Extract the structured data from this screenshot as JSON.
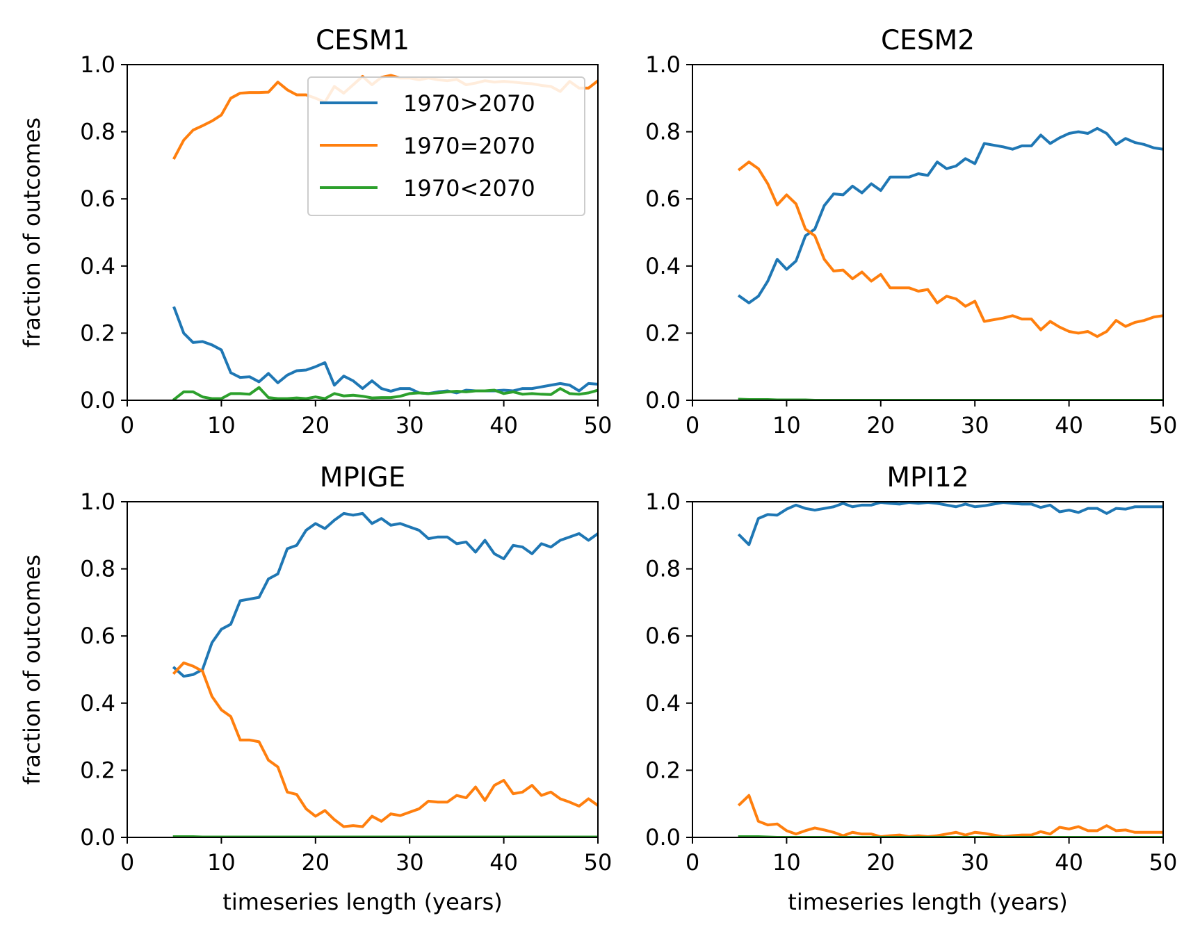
{
  "figure": {
    "series_styles": [
      {
        "key": "gt",
        "label": "1970>2070",
        "color": "#1f77b4"
      },
      {
        "key": "eq",
        "label": "1970=2070",
        "color": "#ff7f0e"
      },
      {
        "key": "lt",
        "label": "1970<2070",
        "color": "#2ca02c"
      }
    ]
  },
  "chart_data": [
    {
      "type": "line",
      "title": "CESM1",
      "xlabel": "",
      "ylabel": "fraction of outcomes",
      "xlim": [
        0,
        50
      ],
      "ylim": [
        0,
        1
      ],
      "xticks": [
        0,
        10,
        20,
        30,
        40,
        50
      ],
      "yticks": [
        0.0,
        0.2,
        0.4,
        0.6,
        0.8,
        1.0
      ],
      "grid": false,
      "legend": "upper-right",
      "x": [
        5,
        6,
        7,
        8,
        9,
        10,
        11,
        12,
        13,
        14,
        15,
        16,
        17,
        18,
        19,
        20,
        21,
        22,
        23,
        24,
        25,
        26,
        27,
        28,
        29,
        30,
        31,
        32,
        33,
        34,
        35,
        36,
        37,
        38,
        39,
        40,
        41,
        42,
        43,
        44,
        45,
        46,
        47,
        48,
        49,
        50
      ],
      "series": [
        {
          "name": "1970>2070",
          "color": "#1f77b4",
          "values": [
            0.275,
            0.2,
            0.172,
            0.175,
            0.165,
            0.15,
            0.082,
            0.068,
            0.07,
            0.055,
            0.08,
            0.052,
            0.075,
            0.088,
            0.09,
            0.1,
            0.112,
            0.045,
            0.072,
            0.058,
            0.035,
            0.058,
            0.035,
            0.027,
            0.035,
            0.035,
            0.022,
            0.02,
            0.025,
            0.028,
            0.022,
            0.03,
            0.028,
            0.028,
            0.028,
            0.03,
            0.028,
            0.035,
            0.035,
            0.04,
            0.045,
            0.05,
            0.045,
            0.028,
            0.05,
            0.048
          ]
        },
        {
          "name": "1970=2070",
          "color": "#ff7f0e",
          "values": [
            0.722,
            0.775,
            0.805,
            0.818,
            0.832,
            0.85,
            0.9,
            0.915,
            0.917,
            0.917,
            0.918,
            0.948,
            0.925,
            0.91,
            0.91,
            0.9,
            0.888,
            0.935,
            0.915,
            0.94,
            0.965,
            0.94,
            0.962,
            0.968,
            0.96,
            0.96,
            0.955,
            0.96,
            0.955,
            0.952,
            0.956,
            0.94,
            0.945,
            0.952,
            0.948,
            0.95,
            0.948,
            0.945,
            0.943,
            0.938,
            0.935,
            0.92,
            0.95,
            0.93,
            0.93,
            0.952
          ]
        },
        {
          "name": "1970<2070",
          "color": "#2ca02c",
          "values": [
            0.003,
            0.025,
            0.025,
            0.01,
            0.005,
            0.005,
            0.02,
            0.02,
            0.018,
            0.038,
            0.008,
            0.005,
            0.005,
            0.007,
            0.005,
            0.01,
            0.005,
            0.02,
            0.013,
            0.015,
            0.012,
            0.007,
            0.008,
            0.008,
            0.012,
            0.02,
            0.022,
            0.02,
            0.022,
            0.025,
            0.027,
            0.025,
            0.028,
            0.028,
            0.03,
            0.02,
            0.025,
            0.018,
            0.02,
            0.018,
            0.017,
            0.035,
            0.02,
            0.018,
            0.022,
            0.03
          ]
        }
      ]
    },
    {
      "type": "line",
      "title": "CESM2",
      "xlabel": "",
      "ylabel": "",
      "xlim": [
        0,
        50
      ],
      "ylim": [
        0,
        1
      ],
      "xticks": [
        0,
        10,
        20,
        30,
        40,
        50
      ],
      "yticks": [
        0.0,
        0.2,
        0.4,
        0.6,
        0.8,
        1.0
      ],
      "grid": false,
      "legend": "none",
      "x": [
        5,
        6,
        7,
        8,
        9,
        10,
        11,
        12,
        13,
        14,
        15,
        16,
        17,
        18,
        19,
        20,
        21,
        22,
        23,
        24,
        25,
        26,
        27,
        28,
        29,
        30,
        31,
        32,
        33,
        34,
        35,
        36,
        37,
        38,
        39,
        40,
        41,
        42,
        43,
        44,
        45,
        46,
        47,
        48,
        49,
        50
      ],
      "series": [
        {
          "name": "1970>2070",
          "color": "#1f77b4",
          "values": [
            0.31,
            0.29,
            0.31,
            0.355,
            0.42,
            0.39,
            0.415,
            0.49,
            0.51,
            0.58,
            0.615,
            0.612,
            0.638,
            0.618,
            0.645,
            0.625,
            0.665,
            0.665,
            0.665,
            0.675,
            0.67,
            0.71,
            0.69,
            0.698,
            0.72,
            0.705,
            0.765,
            0.76,
            0.755,
            0.748,
            0.758,
            0.758,
            0.79,
            0.765,
            0.782,
            0.795,
            0.8,
            0.795,
            0.81,
            0.795,
            0.762,
            0.78,
            0.768,
            0.762,
            0.752,
            0.748
          ]
        },
        {
          "name": "1970=2070",
          "color": "#ff7f0e",
          "values": [
            0.688,
            0.71,
            0.69,
            0.645,
            0.582,
            0.612,
            0.585,
            0.51,
            0.49,
            0.42,
            0.385,
            0.388,
            0.362,
            0.382,
            0.355,
            0.375,
            0.335,
            0.335,
            0.335,
            0.325,
            0.33,
            0.29,
            0.31,
            0.302,
            0.28,
            0.295,
            0.235,
            0.24,
            0.245,
            0.252,
            0.242,
            0.242,
            0.21,
            0.235,
            0.218,
            0.205,
            0.2,
            0.205,
            0.19,
            0.205,
            0.238,
            0.22,
            0.232,
            0.238,
            0.248,
            0.252
          ]
        },
        {
          "name": "1970<2070",
          "color": "#2ca02c",
          "values": [
            0.003,
            0.002,
            0.002,
            0.002,
            0.001,
            0.001,
            0.001,
            0.001,
            0.0,
            0.0,
            0.0,
            0.0,
            0.0,
            0.0,
            0.0,
            0.0,
            0.0,
            0.0,
            0.0,
            0.0,
            0.0,
            0.0,
            0.0,
            0.0,
            0.0,
            0.0,
            0.0,
            0.0,
            0.0,
            0.0,
            0.0,
            0.0,
            0.0,
            0.0,
            0.0,
            0.0,
            0.0,
            0.0,
            0.0,
            0.0,
            0.0,
            0.0,
            0.0,
            0.0,
            0.0,
            0.0
          ]
        }
      ]
    },
    {
      "type": "line",
      "title": "MPIGE",
      "xlabel": "timeseries length (years)",
      "ylabel": "fraction of outcomes",
      "xlim": [
        0,
        50
      ],
      "ylim": [
        0,
        1
      ],
      "xticks": [
        0,
        10,
        20,
        30,
        40,
        50
      ],
      "yticks": [
        0.0,
        0.2,
        0.4,
        0.6,
        0.8,
        1.0
      ],
      "grid": false,
      "legend": "none",
      "x": [
        5,
        6,
        7,
        8,
        9,
        10,
        11,
        12,
        13,
        14,
        15,
        16,
        17,
        18,
        19,
        20,
        21,
        22,
        23,
        24,
        25,
        26,
        27,
        28,
        29,
        30,
        31,
        32,
        33,
        34,
        35,
        36,
        37,
        38,
        39,
        40,
        41,
        42,
        43,
        44,
        45,
        46,
        47,
        48,
        49,
        50
      ],
      "series": [
        {
          "name": "1970>2070",
          "color": "#1f77b4",
          "values": [
            0.505,
            0.48,
            0.485,
            0.5,
            0.58,
            0.62,
            0.635,
            0.705,
            0.71,
            0.715,
            0.77,
            0.785,
            0.86,
            0.87,
            0.915,
            0.935,
            0.92,
            0.945,
            0.965,
            0.96,
            0.965,
            0.935,
            0.95,
            0.93,
            0.935,
            0.925,
            0.915,
            0.89,
            0.895,
            0.895,
            0.875,
            0.88,
            0.85,
            0.885,
            0.845,
            0.83,
            0.87,
            0.865,
            0.845,
            0.875,
            0.865,
            0.885,
            0.895,
            0.905,
            0.885,
            0.905
          ]
        },
        {
          "name": "1970=2070",
          "color": "#ff7f0e",
          "values": [
            0.49,
            0.52,
            0.51,
            0.495,
            0.42,
            0.38,
            0.36,
            0.29,
            0.29,
            0.285,
            0.23,
            0.21,
            0.135,
            0.128,
            0.085,
            0.063,
            0.08,
            0.053,
            0.032,
            0.035,
            0.032,
            0.063,
            0.048,
            0.07,
            0.065,
            0.075,
            0.085,
            0.108,
            0.105,
            0.105,
            0.125,
            0.118,
            0.15,
            0.11,
            0.155,
            0.17,
            0.13,
            0.135,
            0.155,
            0.125,
            0.135,
            0.115,
            0.105,
            0.093,
            0.115,
            0.095
          ]
        },
        {
          "name": "1970<2070",
          "color": "#2ca02c",
          "values": [
            0.002,
            0.002,
            0.002,
            0.001,
            0.001,
            0.001,
            0.001,
            0.001,
            0.001,
            0.001,
            0.001,
            0.001,
            0.001,
            0.001,
            0.001,
            0.001,
            0.001,
            0.001,
            0.001,
            0.001,
            0.001,
            0.001,
            0.001,
            0.001,
            0.001,
            0.001,
            0.001,
            0.001,
            0.001,
            0.001,
            0.001,
            0.001,
            0.001,
            0.001,
            0.001,
            0.001,
            0.001,
            0.001,
            0.001,
            0.001,
            0.001,
            0.001,
            0.001,
            0.001,
            0.001,
            0.001
          ]
        }
      ]
    },
    {
      "type": "line",
      "title": "MPI12",
      "xlabel": "timeseries length (years)",
      "ylabel": "",
      "xlim": [
        0,
        50
      ],
      "ylim": [
        0,
        1
      ],
      "xticks": [
        0,
        10,
        20,
        30,
        40,
        50
      ],
      "yticks": [
        0.0,
        0.2,
        0.4,
        0.6,
        0.8,
        1.0
      ],
      "grid": false,
      "legend": "none",
      "x": [
        5,
        6,
        7,
        8,
        9,
        10,
        11,
        12,
        13,
        14,
        15,
        16,
        17,
        18,
        19,
        20,
        21,
        22,
        23,
        24,
        25,
        26,
        27,
        28,
        29,
        30,
        31,
        32,
        33,
        34,
        35,
        36,
        37,
        38,
        39,
        40,
        41,
        42,
        43,
        44,
        45,
        46,
        47,
        48,
        49,
        50
      ],
      "series": [
        {
          "name": "1970>2070",
          "color": "#1f77b4",
          "values": [
            0.9,
            0.872,
            0.95,
            0.962,
            0.96,
            0.978,
            0.99,
            0.98,
            0.975,
            0.98,
            0.985,
            0.995,
            0.985,
            0.99,
            0.99,
            0.998,
            0.995,
            0.993,
            0.998,
            0.995,
            0.998,
            0.995,
            0.99,
            0.985,
            0.993,
            0.985,
            0.988,
            0.993,
            0.998,
            0.995,
            0.993,
            0.993,
            0.983,
            0.99,
            0.97,
            0.975,
            0.968,
            0.98,
            0.98,
            0.965,
            0.98,
            0.978,
            0.985,
            0.985,
            0.985,
            0.985
          ]
        },
        {
          "name": "1970=2070",
          "color": "#ff7f0e",
          "values": [
            0.098,
            0.125,
            0.048,
            0.037,
            0.04,
            0.02,
            0.01,
            0.02,
            0.028,
            0.022,
            0.015,
            0.005,
            0.015,
            0.01,
            0.01,
            0.002,
            0.005,
            0.007,
            0.002,
            0.005,
            0.002,
            0.005,
            0.01,
            0.015,
            0.007,
            0.015,
            0.012,
            0.007,
            0.002,
            0.005,
            0.007,
            0.007,
            0.017,
            0.01,
            0.03,
            0.025,
            0.032,
            0.02,
            0.02,
            0.035,
            0.02,
            0.022,
            0.015,
            0.015,
            0.015,
            0.015
          ]
        },
        {
          "name": "1970<2070",
          "color": "#2ca02c",
          "values": [
            0.002,
            0.002,
            0.002,
            0.001,
            0.0,
            0.0,
            0.0,
            0.0,
            0.0,
            0.0,
            0.0,
            0.0,
            0.0,
            0.0,
            0.0,
            0.0,
            0.0,
            0.0,
            0.0,
            0.0,
            0.0,
            0.0,
            0.0,
            0.0,
            0.0,
            0.0,
            0.0,
            0.0,
            0.0,
            0.0,
            0.0,
            0.0,
            0.0,
            0.0,
            0.0,
            0.0,
            0.0,
            0.0,
            0.0,
            0.0,
            0.0,
            0.0,
            0.0,
            0.0,
            0.0,
            0.0
          ]
        }
      ]
    }
  ]
}
